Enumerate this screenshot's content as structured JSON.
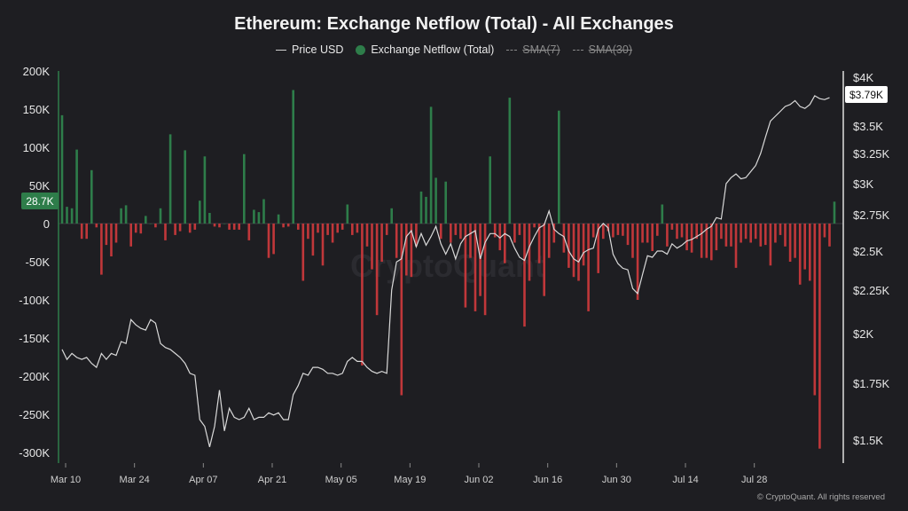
{
  "title": "Ethereum: Exchange Netflow (Total) - All Exchanges",
  "legend": {
    "price": "Price USD",
    "netflow": "Exchange Netflow (Total)",
    "sma7": "SMA(7)",
    "sma30": "SMA(30)"
  },
  "badges": {
    "left": "28.7K",
    "right": "$3.79K"
  },
  "watermark": "CryptoQuant",
  "copyright": "© CryptoQuant. All rights reserved",
  "colors": {
    "positive": "#2e7d4a",
    "negative": "#c0373a",
    "price": "#d9d9d9",
    "left_badge": "#2e7d4a",
    "right_badge": "#ffffff"
  },
  "chart_data": {
    "type": "bar",
    "start_date": "2025-03-10",
    "x_ticks": [
      "Mar 10",
      "Mar 24",
      "Apr 07",
      "Apr 21",
      "May 05",
      "May 19",
      "Jun 02",
      "Jun 16",
      "Jun 30",
      "Jul 14",
      "Jul 28"
    ],
    "y_left": {
      "ticks": [
        "200K",
        "150K",
        "100K",
        "50K",
        "0",
        "-50K",
        "-100K",
        "-150K",
        "-200K",
        "-250K",
        "-300K"
      ],
      "range": [
        -300000,
        200000
      ]
    },
    "y_right": {
      "ticks": [
        "$4K",
        "$3.5K",
        "$3.25K",
        "$3K",
        "$2.75K",
        "$2.5K",
        "$2.25K",
        "$2K",
        "$1.75K",
        "$1.5K"
      ],
      "range": [
        1400,
        4000
      ]
    },
    "series": [
      {
        "name": "Exchange Netflow (Total)",
        "axis": "left",
        "values": [
          142000,
          22000,
          20000,
          97000,
          -20000,
          -20000,
          70000,
          -5000,
          -67000,
          -28000,
          -43000,
          -25000,
          20000,
          24000,
          -30000,
          -12000,
          -13000,
          10000,
          0,
          -5000,
          20000,
          -22000,
          117000,
          -15000,
          -10000,
          96000,
          -12000,
          -8000,
          30000,
          88000,
          14000,
          -4000,
          -5000,
          0,
          -8000,
          -8000,
          -8000,
          91000,
          -22000,
          18000,
          15000,
          32000,
          -45000,
          -40000,
          12000,
          -5000,
          -4000,
          175000,
          -8000,
          -75000,
          -20000,
          -42000,
          -12000,
          -55000,
          -15000,
          -25000,
          -12000,
          -8000,
          25000,
          -15000,
          -12000,
          -186000,
          -30000,
          -60000,
          -120000,
          -50000,
          -15000,
          20000,
          -45000,
          -225000,
          -68000,
          -70000,
          -30000,
          42000,
          35000,
          153000,
          60000,
          -20000,
          55000,
          -25000,
          -15000,
          -20000,
          -110000,
          -45000,
          -115000,
          -95000,
          -120000,
          88000,
          -18000,
          -35000,
          -52000,
          165000,
          -25000,
          -15000,
          -135000,
          -75000,
          -5000,
          -52000,
          -95000,
          -45000,
          -25000,
          148000,
          -38000,
          -58000,
          -70000,
          -75000,
          -55000,
          -115000,
          -18000,
          -65000,
          -20000,
          -10000,
          -18000,
          -15000,
          -16000,
          -28000,
          -45000,
          -100000,
          -25000,
          -25000,
          -36000,
          -16000,
          25000,
          -30000,
          -8000,
          -20000,
          -18000,
          -35000,
          -38000,
          -20000,
          -45000,
          -45000,
          -48000,
          -35000,
          -20000,
          -30000,
          -30000,
          -58000,
          -25000,
          -20000,
          -25000,
          -20000,
          -30000,
          -28000,
          -55000,
          -25000,
          -15000,
          -30000,
          -50000,
          -45000,
          -80000,
          -60000,
          -75000,
          -225000,
          -295000,
          -18000,
          -30000,
          28700
        ]
      },
      {
        "name": "Price USD",
        "axis": "right",
        "values": [
          1920,
          1870,
          1900,
          1880,
          1870,
          1880,
          1850,
          1830,
          1900,
          1870,
          1900,
          1890,
          1960,
          1950,
          2080,
          2050,
          2030,
          2020,
          2080,
          2060,
          1950,
          1930,
          1920,
          1900,
          1880,
          1850,
          1800,
          1790,
          1590,
          1560,
          1470,
          1560,
          1720,
          1540,
          1640,
          1600,
          1590,
          1600,
          1640,
          1590,
          1600,
          1600,
          1620,
          1610,
          1620,
          1590,
          1590,
          1700,
          1740,
          1800,
          1790,
          1830,
          1830,
          1820,
          1800,
          1800,
          1790,
          1800,
          1860,
          1880,
          1860,
          1860,
          1830,
          1810,
          1800,
          1810,
          1800,
          2250,
          2430,
          2450,
          2600,
          2640,
          2530,
          2620,
          2540,
          2600,
          2670,
          2550,
          2480,
          2550,
          2450,
          2550,
          2600,
          2620,
          2640,
          2450,
          2560,
          2620,
          2620,
          2590,
          2620,
          2600,
          2520,
          2460,
          2440,
          2530,
          2600,
          2660,
          2680,
          2780,
          2650,
          2620,
          2600,
          2500,
          2450,
          2430,
          2490,
          2510,
          2520,
          2650,
          2690,
          2660,
          2480,
          2420,
          2390,
          2380,
          2260,
          2230,
          2350,
          2470,
          2460,
          2500,
          2500,
          2480,
          2550,
          2520,
          2540,
          2570,
          2580,
          2600,
          2620,
          2650,
          2670,
          2730,
          2720,
          3000,
          3050,
          3080,
          3040,
          3050,
          3100,
          3150,
          3250,
          3400,
          3550,
          3600,
          3650,
          3700,
          3720,
          3760,
          3700,
          3680,
          3720,
          3810,
          3780,
          3770,
          3790
        ]
      }
    ]
  }
}
